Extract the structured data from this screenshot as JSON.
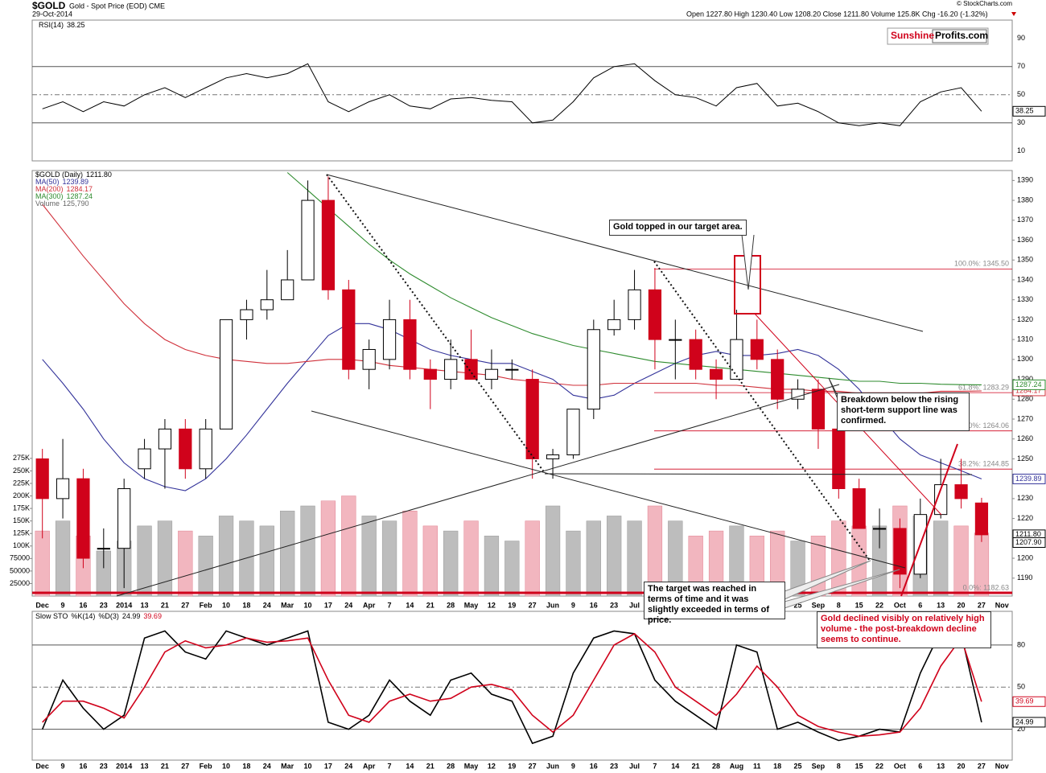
{
  "header": {
    "symbol": "$GOLD",
    "description": "Gold - Spot Price (EOD) CME",
    "date": "29-Oct-2014",
    "quote": "Open 1227.80 High 1230.40 Low 1208.20 Close 1211.80 Volume 125.8K Chg -16.20 (-1.32%)",
    "source": "© StockCharts.com",
    "logo_red": "Sunshine",
    "logo_black": "Profits.com"
  },
  "annotations": [
    "Gold topped in our target area.",
    "Breakdown below the rising short-term support line was confirmed.",
    "The target was reached in terms of time and it was slightly exceeded in terms of price.",
    "Gold declined visibly on relatively high volume - the post-breakdown decline seems to continue."
  ],
  "chart_data": [
    {
      "type": "line",
      "ylim": [
        3,
        103
      ],
      "yticks": [
        10,
        30,
        50,
        70,
        90
      ],
      "reference_lines": [
        30,
        50,
        70
      ],
      "series": [
        {
          "name": "RSI(14)",
          "color": "#000000",
          "end_label": "38.25",
          "values": [
            40,
            45,
            38,
            45,
            42,
            50,
            55,
            48,
            55,
            62,
            65,
            62,
            65,
            72,
            45,
            38,
            45,
            50,
            42,
            40,
            47,
            48,
            46,
            45,
            30,
            32,
            45,
            62,
            70,
            72,
            60,
            50,
            48,
            42,
            55,
            58,
            42,
            44,
            38,
            30,
            28,
            30,
            28,
            45,
            52,
            55,
            38.25,
            null
          ]
        }
      ]
    },
    {
      "type": "candlestick",
      "name": "$GOLD (Daily)",
      "last": {
        "value": 1211.8,
        "label": "1211.80"
      },
      "extra_label": {
        "value": 1207.9,
        "label": "1207.90"
      },
      "categories": [
        "Dec",
        "9",
        "16",
        "23",
        "2014",
        "13",
        "21",
        "27",
        "Feb",
        "10",
        "18",
        "24",
        "Mar",
        "10",
        "17",
        "24",
        "Apr",
        "7",
        "14",
        "21",
        "28",
        "May",
        "12",
        "19",
        "27",
        "Jun",
        "9",
        "16",
        "23",
        "Jul",
        "7",
        "14",
        "21",
        "28",
        "Aug",
        "11",
        "18",
        "25",
        "Sep",
        "8",
        "15",
        "22",
        "Oct",
        "6",
        "13",
        "20",
        "27",
        "Nov"
      ],
      "ylim": [
        1181,
        1395
      ],
      "yticks": [
        1190,
        1200,
        1210,
        1220,
        1230,
        1240,
        1250,
        1260,
        1270,
        1280,
        1290,
        1300,
        1310,
        1320,
        1330,
        1340,
        1350,
        1360,
        1370,
        1380,
        1390
      ],
      "y2lim": [
        0,
        850000
      ],
      "y2ticks": [
        25000,
        50000,
        75000,
        {
          "value": 100000,
          "label": "100K"
        },
        {
          "value": 125000,
          "label": "125K"
        },
        {
          "value": 150000,
          "label": "150K"
        },
        {
          "value": 175000,
          "label": "175K"
        },
        {
          "value": 200000,
          "label": "200K"
        },
        {
          "value": 225000,
          "label": "225K"
        },
        {
          "value": 250000,
          "label": "250K"
        },
        {
          "value": 275000,
          "label": "275K"
        }
      ],
      "up_color": "#000000",
      "down_color": "#d0021b",
      "open": [
        1250,
        1230,
        1240,
        1205,
        1205,
        1245,
        1255,
        1265,
        1245,
        1265,
        1320,
        1325,
        1330,
        1340,
        1380,
        1335,
        1295,
        1300,
        1320,
        1295,
        1290,
        1300,
        1290,
        1295,
        1290,
        1250,
        1252,
        1275,
        1315,
        1320,
        1335,
        1310,
        1310,
        1295,
        1290,
        1310,
        1300,
        1280,
        1285,
        1265,
        1235,
        1215,
        1215,
        1192,
        1222,
        1237,
        1227.8,
        null
      ],
      "high": [
        1255,
        1260,
        1245,
        1215,
        1240,
        1260,
        1270,
        1270,
        1270,
        1320,
        1330,
        1345,
        1355,
        1390,
        1392,
        1340,
        1310,
        1330,
        1330,
        1300,
        1310,
        1315,
        1305,
        1300,
        1295,
        1255,
        1275,
        1320,
        1330,
        1345,
        1346,
        1320,
        1315,
        1300,
        1325,
        1320,
        1305,
        1290,
        1290,
        1270,
        1240,
        1225,
        1220,
        1230,
        1250,
        1250,
        1230.4,
        null
      ],
      "low": [
        1210,
        1220,
        1195,
        1195,
        1185,
        1240,
        1235,
        1240,
        1240,
        1265,
        1310,
        1320,
        1330,
        1340,
        1330,
        1290,
        1285,
        1295,
        1290,
        1275,
        1285,
        1290,
        1285,
        1290,
        1240,
        1240,
        1250,
        1270,
        1312,
        1315,
        1295,
        1290,
        1290,
        1280,
        1290,
        1295,
        1275,
        1275,
        1255,
        1230,
        1215,
        1205,
        1185,
        1190,
        1220,
        1225,
        1208.2,
        null
      ],
      "close": [
        1230,
        1240,
        1200,
        1205,
        1235,
        1255,
        1265,
        1245,
        1265,
        1320,
        1325,
        1330,
        1340,
        1380,
        1335,
        1295,
        1305,
        1320,
        1295,
        1290,
        1300,
        1290,
        1295,
        1295,
        1250,
        1252,
        1275,
        1315,
        1320,
        1335,
        1310,
        1310,
        1295,
        1290,
        1310,
        1300,
        1280,
        1285,
        1265,
        1235,
        1215,
        1215,
        1192,
        1222,
        1237,
        1230,
        1211.8,
        null
      ],
      "series": [
        {
          "name": "MA(50)",
          "color": "#33339a",
          "end_label": "1239.89",
          "values": [
            1300,
            1288,
            1275,
            1260,
            1248,
            1240,
            1236,
            1234,
            1240,
            1250,
            1262,
            1275,
            1288,
            1300,
            1312,
            1318,
            1318,
            1315,
            1310,
            1305,
            1302,
            1300,
            1298,
            1298,
            1294,
            1290,
            1282,
            1280,
            1282,
            1288,
            1293,
            1298,
            1302,
            1304,
            1302,
            1302,
            1303,
            1305,
            1302,
            1295,
            1285,
            1272,
            1260,
            1252,
            1248,
            1244,
            1239.89,
            null
          ]
        },
        {
          "name": "MA(200)",
          "color": "#d0303a",
          "end_label": "1284.17",
          "values": [
            1378,
            1365,
            1352,
            1340,
            1328,
            1318,
            1310,
            1305,
            1302,
            1300,
            1299,
            1298,
            1298,
            1299,
            1300,
            1300,
            1299,
            1297,
            1296,
            1295,
            1294,
            1293,
            1292,
            1290,
            1289,
            1288,
            1287,
            1287,
            1288,
            1288,
            1288,
            1288,
            1288,
            1287,
            1287,
            1286,
            1285,
            1285,
            1284,
            1284,
            1283,
            1283,
            1283,
            1283,
            1284,
            1284,
            1284.17,
            null
          ]
        },
        {
          "name": "MA(300)",
          "color": "#2e8b2e",
          "end_label": "1287.24",
          "values": [
            null,
            null,
            null,
            null,
            null,
            null,
            null,
            null,
            null,
            null,
            null,
            null,
            1394,
            1385,
            1376,
            1367,
            1358,
            1350,
            1343,
            1337,
            1331,
            1326,
            1321,
            1317,
            1313,
            1310,
            1307,
            1305,
            1303,
            1301,
            1299,
            1298,
            1297,
            1296,
            1295,
            1294,
            1293,
            1292,
            1291,
            1290,
            1289,
            1289,
            1288,
            1288,
            1287.5,
            1287.3,
            1287.24,
            null
          ]
        },
        {
          "name": "Volume",
          "axis": "y2",
          "color": "#f2b6bf",
          "up_color": "#bdbdbd",
          "end_label": "125,790",
          "values": [
            130000,
            150000,
            120000,
            90000,
            110000,
            140000,
            150000,
            130000,
            120000,
            160000,
            150000,
            140000,
            170000,
            180000,
            190000,
            200000,
            160000,
            150000,
            170000,
            140000,
            130000,
            150000,
            120000,
            110000,
            150000,
            180000,
            130000,
            150000,
            160000,
            150000,
            180000,
            150000,
            120000,
            130000,
            140000,
            120000,
            130000,
            110000,
            120000,
            150000,
            140000,
            140000,
            180000,
            160000,
            150000,
            140000,
            125790,
            null
          ]
        }
      ],
      "fibonacci": [
        {
          "value": 1345.5,
          "label": "100.0%: 1345.50"
        },
        {
          "value": 1283.29,
          "label": "61.8%: 1283.29"
        },
        {
          "value": 1264.06,
          "label": "50.0%: 1264.06"
        },
        {
          "value": 1244.85,
          "label": "38.2%: 1244.85"
        },
        {
          "value": 1182.63,
          "label": "0.0%: 1182.63"
        }
      ]
    },
    {
      "type": "line",
      "title": "Slow STO",
      "ylim": [
        -2,
        104
      ],
      "yticks": [
        20,
        50,
        80
      ],
      "categories": [
        "Dec",
        "9",
        "16",
        "23",
        "2014",
        "13",
        "21",
        "27",
        "Feb",
        "10",
        "18",
        "24",
        "Mar",
        "10",
        "17",
        "24",
        "Apr",
        "7",
        "14",
        "21",
        "28",
        "May",
        "12",
        "19",
        "27",
        "Jun",
        "9",
        "16",
        "23",
        "Jul",
        "7",
        "14",
        "21",
        "28",
        "Aug",
        "11",
        "18",
        "25",
        "Sep",
        "8",
        "15",
        "22",
        "Oct",
        "6",
        "13",
        "20",
        "27",
        "Nov"
      ],
      "reference_lines": [
        20,
        50,
        80
      ],
      "series": [
        {
          "name": "%K(14)",
          "color": "#000000",
          "end_label": "24.99",
          "values": [
            20,
            55,
            35,
            20,
            30,
            85,
            90,
            75,
            70,
            90,
            85,
            80,
            85,
            90,
            25,
            20,
            30,
            55,
            40,
            30,
            55,
            60,
            45,
            40,
            10,
            15,
            60,
            85,
            90,
            88,
            55,
            40,
            30,
            20,
            80,
            75,
            20,
            25,
            18,
            12,
            15,
            20,
            18,
            60,
            90,
            88,
            24.99,
            null
          ]
        },
        {
          "name": "%D(3)",
          "color": "#d0021b",
          "end_label": "39.69",
          "values": [
            25,
            40,
            40,
            35,
            28,
            50,
            75,
            83,
            78,
            80,
            85,
            82,
            83,
            85,
            55,
            30,
            25,
            40,
            45,
            40,
            42,
            50,
            52,
            48,
            30,
            18,
            30,
            55,
            80,
            88,
            75,
            50,
            40,
            30,
            45,
            65,
            50,
            30,
            22,
            18,
            15,
            16,
            18,
            35,
            65,
            85,
            39.69,
            null
          ]
        }
      ]
    }
  ]
}
